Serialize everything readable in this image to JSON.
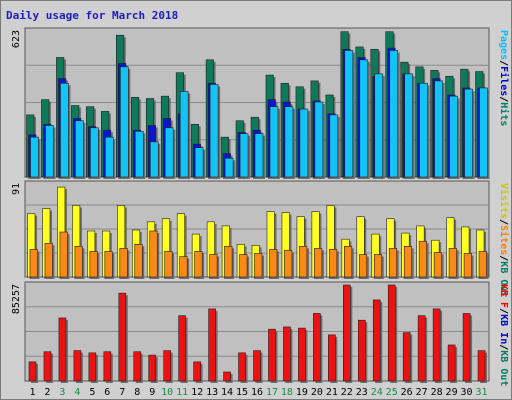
{
  "chart_data": {
    "type": "bar",
    "title": "Daily usage for March 2018",
    "categories": [
      "1",
      "2",
      "3",
      "4",
      "5",
      "6",
      "7",
      "8",
      "9",
      "10",
      "11",
      "12",
      "13",
      "14",
      "15",
      "16",
      "17",
      "18",
      "19",
      "20",
      "21",
      "22",
      "23",
      "24",
      "25",
      "26",
      "27",
      "28",
      "29",
      "30",
      "31"
    ],
    "weekend_days": [
      "3",
      "4",
      "10",
      "11",
      "17",
      "18",
      "24",
      "25",
      "31"
    ],
    "grid": true,
    "panels": [
      {
        "id": "top",
        "ymax_label": "623",
        "ymax": 623,
        "legend": [
          "Pages",
          "/",
          "Files",
          "/",
          "Hits"
        ],
        "legend_colors": [
          "#00c0ff",
          "#000000",
          "#0000cc",
          "#000000",
          "#008060"
        ],
        "series": [
          {
            "name": "Hits",
            "color": "#0f7a5a",
            "values": [
              265,
              330,
              510,
              305,
              300,
              280,
              605,
              340,
              335,
              345,
              445,
              225,
              500,
              170,
              240,
              255,
              435,
              400,
              385,
              410,
              350,
              620,
              555,
              545,
              620,
              490,
              470,
              455,
              430,
              460,
              450
            ]
          },
          {
            "name": "Files",
            "color": "#0a16d0",
            "values": [
              180,
              225,
              420,
              250,
              215,
              200,
              485,
              200,
              220,
              250,
              270,
              140,
              400,
              100,
              190,
              200,
              330,
              320,
              290,
              325,
              270,
              545,
              510,
              430,
              550,
              440,
              400,
              420,
              350,
              380,
              380
            ]
          },
          {
            "name": "Pages",
            "color": "#12c3f5",
            "values": [
              170,
              220,
              400,
              240,
              210,
              170,
              470,
              195,
              150,
              210,
              365,
              125,
              395,
              80,
              185,
              185,
              300,
              300,
              290,
              320,
              265,
              540,
              500,
              440,
              540,
              440,
              400,
              410,
              345,
              375,
              380
            ]
          }
        ]
      },
      {
        "id": "middle",
        "ymax_label": "91",
        "ymax": 91,
        "legend": [
          "Visits",
          "/",
          "Sites",
          "/",
          "KB Out"
        ],
        "legend_colors": [
          "#c8c800",
          "#000000",
          "#ff8000",
          "#000000",
          "#008060"
        ],
        "series": [
          {
            "name": "Visits",
            "color": "#ffff20",
            "values": [
              62,
              67,
              88,
              70,
              45,
              45,
              70,
              46,
              54,
              57,
              62,
              42,
              54,
              50,
              32,
              31,
              64,
              63,
              59,
              64,
              70,
              37,
              59,
              42,
              57,
              43,
              50,
              36,
              58,
              49,
              46
            ]
          },
          {
            "name": "Sites",
            "color": "#f98918",
            "values": [
              27,
              33,
              44,
              30,
              25,
              25,
              28,
              32,
              45,
              25,
              20,
              25,
              22,
              30,
              22,
              23,
              27,
              26,
              30,
              28,
              27,
              30,
              22,
              22,
              28,
              30,
              35,
              24,
              28,
              23,
              25
            ]
          }
        ]
      },
      {
        "id": "bottom",
        "ymax_label": "85257",
        "ymax": 85257,
        "legend": [
          "KB F",
          "/",
          "KB In",
          "/",
          "KB Out"
        ],
        "legend_colors": [
          "#ff0000",
          "#000000",
          "#0000cc",
          "#000000",
          "#008060"
        ],
        "series": [
          {
            "name": "KB F",
            "color": "#ee1111",
            "values": [
              17000,
              26000,
              56000,
              27000,
              25000,
              26000,
              78000,
              26000,
              23000,
              27000,
              58000,
              17000,
              64000,
              8000,
              25000,
              27000,
              46000,
              48000,
              47000,
              60000,
              41000,
              85257,
              54000,
              72000,
              85257,
              43000,
              58000,
              64000,
              32000,
              60000,
              27000
            ]
          }
        ]
      }
    ]
  }
}
